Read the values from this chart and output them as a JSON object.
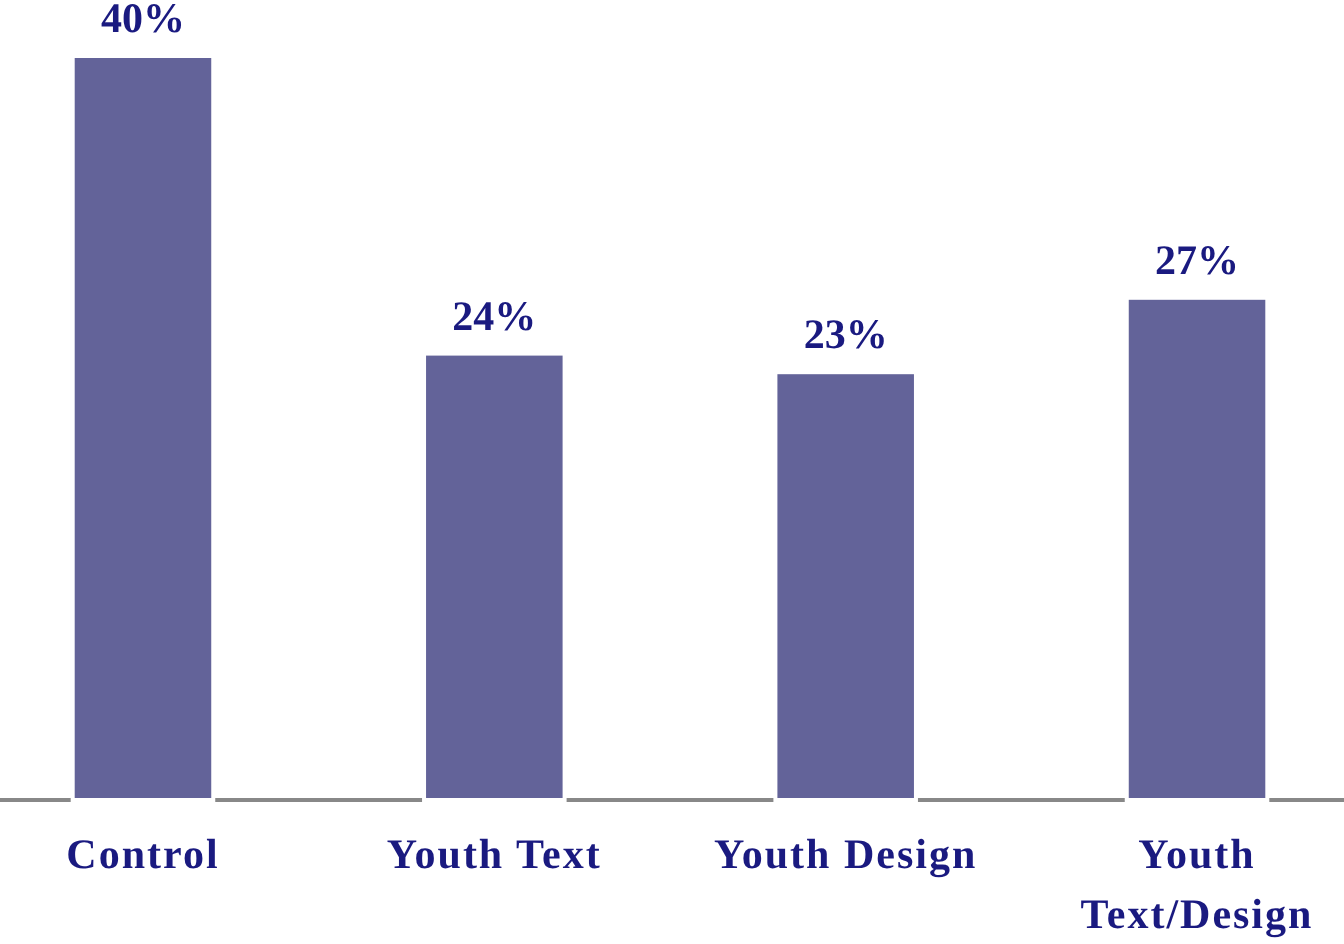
{
  "chart_data": {
    "type": "bar",
    "categories": [
      "Control",
      "Youth Text",
      "Youth Design",
      "Youth Text/Design"
    ],
    "values": [
      40,
      24,
      23,
      27
    ],
    "value_labels": [
      "40%",
      "24%",
      "23%",
      "27%"
    ],
    "color": "#636399"
  }
}
